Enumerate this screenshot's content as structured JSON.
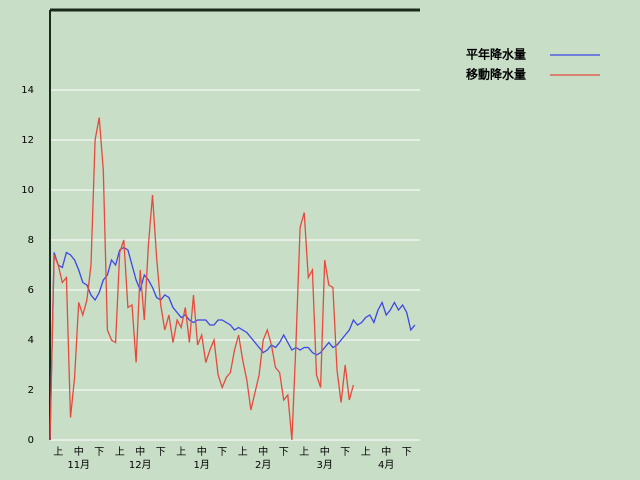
{
  "chart_data": {
    "type": "line",
    "categories": [
      null,
      null,
      "上",
      null,
      null,
      null,
      null,
      "中",
      null,
      null,
      null,
      null,
      "下",
      null,
      null,
      null,
      null,
      "上",
      null,
      null,
      null,
      null,
      "中",
      null,
      null,
      null,
      null,
      "下",
      null,
      null,
      null,
      null,
      "上",
      null,
      null,
      null,
      null,
      "中",
      null,
      null,
      null,
      null,
      "下",
      null,
      null,
      null,
      null,
      "上",
      null,
      null,
      null,
      null,
      "中",
      null,
      null,
      null,
      null,
      "下",
      null,
      null,
      null,
      null,
      "上",
      null,
      null,
      null,
      null,
      "中",
      null,
      null,
      null,
      null,
      "下",
      null,
      null,
      null,
      null,
      "上",
      null,
      null,
      null,
      null,
      "中",
      null,
      null,
      null,
      null,
      "下",
      null,
      null
    ],
    "month_labels": [
      "11月",
      "12月",
      "1月",
      "2月",
      "3月",
      "4月"
    ],
    "series": [
      {
        "name": "平年降水量",
        "color": "#3c46e6",
        "values": [
          0,
          7.5,
          7.0,
          6.9,
          7.5,
          7.4,
          7.2,
          6.8,
          6.3,
          6.2,
          5.8,
          5.6,
          5.9,
          6.4,
          6.6,
          7.2,
          7.0,
          7.6,
          7.7,
          7.6,
          7.0,
          6.4,
          6.0,
          6.6,
          6.4,
          6.1,
          5.7,
          5.6,
          5.8,
          5.7,
          5.3,
          5.1,
          4.9,
          5.0,
          4.8,
          4.7,
          4.8,
          4.8,
          4.8,
          4.6,
          4.6,
          4.8,
          4.8,
          4.7,
          4.6,
          4.4,
          4.5,
          4.4,
          4.3,
          4.1,
          3.9,
          3.7,
          3.5,
          3.6,
          3.8,
          3.7,
          3.9,
          4.2,
          3.9,
          3.6,
          3.7,
          3.6,
          3.7,
          3.7,
          3.5,
          3.4,
          3.5,
          3.7,
          3.9,
          3.7,
          3.8,
          4.0,
          4.2,
          4.4,
          4.8,
          4.6,
          4.7,
          4.9,
          5.0,
          4.7,
          5.2,
          5.5,
          5.0,
          5.2,
          5.5,
          5.2,
          5.4,
          5.1,
          4.4,
          4.6
        ]
      },
      {
        "name": "移動降水量",
        "color": "#e64a3c",
        "values": [
          0,
          7.4,
          7.0,
          6.3,
          6.5,
          0.9,
          2.5,
          5.5,
          5.0,
          5.6,
          7.0,
          12.0,
          12.9,
          10.8,
          4.4,
          4.0,
          3.9,
          7.5,
          8.0,
          5.3,
          5.4,
          3.1,
          6.8,
          4.8,
          7.8,
          9.8,
          7.3,
          5.4,
          4.4,
          5.0,
          3.9,
          4.8,
          4.5,
          5.3,
          3.9,
          5.8,
          3.8,
          4.2,
          3.1,
          3.6,
          4.0,
          2.6,
          2.1,
          2.5,
          2.7,
          3.6,
          4.2,
          3.2,
          2.4,
          1.2,
          1.9,
          2.6,
          4.0,
          4.4,
          3.8,
          2.9,
          2.7,
          1.6,
          1.8,
          0.0,
          3.9,
          8.5,
          9.1,
          6.5,
          6.8,
          2.6,
          2.1,
          7.2,
          6.2,
          6.1,
          2.8,
          1.5,
          3.0,
          1.6,
          2.2,
          null,
          null,
          null,
          null,
          null,
          null,
          null,
          null,
          null,
          null,
          null,
          null,
          null,
          null,
          null
        ]
      }
    ],
    "ylim": [
      0,
      17.2
    ],
    "yticks": [
      0,
      2,
      4,
      6,
      8,
      10,
      12,
      14
    ],
    "grid": true,
    "legend": "top-right"
  }
}
